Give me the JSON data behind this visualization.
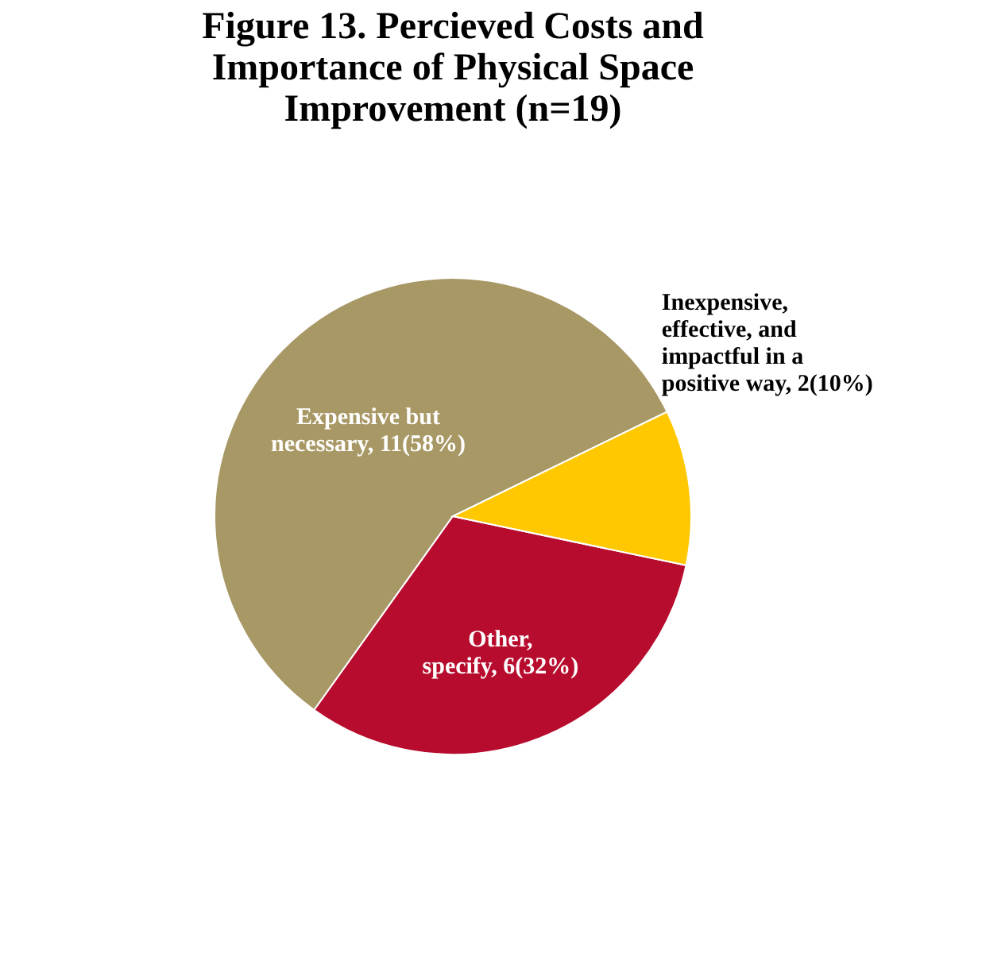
{
  "chart_data": {
    "type": "pie",
    "title": "Figure 13. Percieved Costs and Importance of Physical Space Improvement (n=19)",
    "categories": [
      "Expensive but necessary",
      "Other, specify",
      "Inexpensive, effective, and impactful in a positive way"
    ],
    "values": [
      11,
      6,
      2
    ],
    "value_labels": [
      "11(58%)",
      "6(32%)",
      "2(10%)"
    ],
    "colors": [
      "#a89866",
      "#b80c2e",
      "#ffc800"
    ],
    "legend": false
  }
}
